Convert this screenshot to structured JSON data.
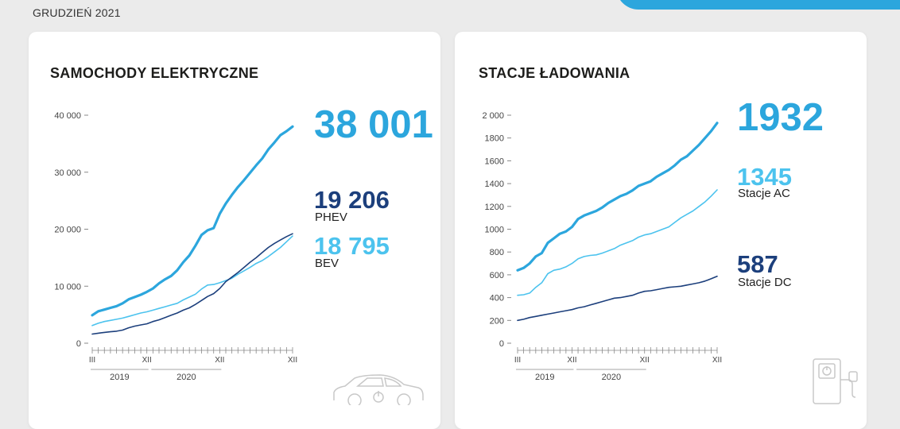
{
  "header": {
    "date": "GRUDZIEŃ 2021"
  },
  "colors": {
    "total": "#2ca6dd",
    "phev": "#1c3f7c",
    "bev": "#4cc3ee",
    "axis": "#888888"
  },
  "icons": [
    "car-icon",
    "charger-icon"
  ],
  "cards": {
    "ev": {
      "title": "SAMOCHODY ELEKTRYCZNE",
      "total_value": "38 001",
      "phev_value": "19 206",
      "phev_label": "PHEV",
      "bev_value": "18 795",
      "bev_label": "BEV"
    },
    "stations": {
      "title": "STACJE ŁADOWANIA",
      "total_value": "1932",
      "ac_value": "1345",
      "ac_label": "Stacje AC",
      "dc_value": "587",
      "dc_label": "Stacje DC"
    }
  },
  "chart_data": [
    {
      "type": "line",
      "title": "SAMOCHODY ELEKTRYCZNE",
      "ylim": [
        0,
        40000
      ],
      "yticks": [
        0,
        10000,
        20000,
        30000,
        40000
      ],
      "ytick_labels": [
        "0",
        "10 000",
        "20 000",
        "30 000",
        "40 000"
      ],
      "xticks": [
        "III",
        "XII",
        "XII",
        "XII"
      ],
      "year_labels": [
        "2019",
        "2020"
      ],
      "grid": false,
      "x_months": [
        "2019-03",
        "2019-04",
        "2019-05",
        "2019-06",
        "2019-07",
        "2019-08",
        "2019-09",
        "2019-10",
        "2019-11",
        "2019-12",
        "2020-01",
        "2020-02",
        "2020-03",
        "2020-04",
        "2020-05",
        "2020-06",
        "2020-07",
        "2020-08",
        "2020-09",
        "2020-10",
        "2020-11",
        "2020-12",
        "2021-01",
        "2021-02",
        "2021-03",
        "2021-04",
        "2021-05",
        "2021-06",
        "2021-07",
        "2021-08",
        "2021-09",
        "2021-10",
        "2021-11",
        "2021-12"
      ],
      "series": [
        {
          "values": [
            4900,
            5600,
            5900,
            6200,
            6500,
            7000,
            7700,
            8100,
            8500,
            9000,
            9600,
            10500,
            11200,
            11800,
            12800,
            14200,
            15400,
            17100,
            19000,
            19800,
            20200,
            22700,
            24500,
            26000,
            27400,
            28600,
            29900,
            31200,
            32400,
            34000,
            35200,
            36500,
            37200,
            38001
          ]
        },
        {
          "values": [
            1600,
            1750,
            1900,
            2000,
            2100,
            2300,
            2700,
            3000,
            3200,
            3400,
            3800,
            4100,
            4500,
            4900,
            5300,
            5800,
            6200,
            6800,
            7500,
            8200,
            8700,
            9600,
            10800,
            11600,
            12400,
            13300,
            14200,
            15000,
            15900,
            16800,
            17500,
            18100,
            18700,
            19206
          ]
        },
        {
          "values": [
            3100,
            3500,
            3800,
            4000,
            4200,
            4400,
            4700,
            5000,
            5300,
            5500,
            5800,
            6100,
            6400,
            6700,
            7000,
            7600,
            8100,
            8600,
            9500,
            10200,
            10300,
            10600,
            11000,
            11400,
            12100,
            12700,
            13300,
            14000,
            14500,
            15200,
            16000,
            16800,
            17800,
            18795
          ]
        }
      ]
    },
    {
      "type": "line",
      "title": "STACJE ŁADOWANIA",
      "ylim": [
        0,
        2000
      ],
      "yticks": [
        0,
        200,
        400,
        600,
        800,
        1000,
        1200,
        1400,
        1600,
        1800,
        2000
      ],
      "ytick_labels": [
        "0",
        "200",
        "400",
        "600",
        "800",
        "1000",
        "1200",
        "1400",
        "1600",
        "1800",
        "2 000"
      ],
      "xticks": [
        "III",
        "XII",
        "XII",
        "XII"
      ],
      "year_labels": [
        "2019",
        "2020"
      ],
      "grid": false,
      "x_months": [
        "2019-03",
        "2019-04",
        "2019-05",
        "2019-06",
        "2019-07",
        "2019-08",
        "2019-09",
        "2019-10",
        "2019-11",
        "2019-12",
        "2020-01",
        "2020-02",
        "2020-03",
        "2020-04",
        "2020-05",
        "2020-06",
        "2020-07",
        "2020-08",
        "2020-09",
        "2020-10",
        "2020-11",
        "2020-12",
        "2021-01",
        "2021-02",
        "2021-03",
        "2021-04",
        "2021-05",
        "2021-06",
        "2021-07",
        "2021-08",
        "2021-09",
        "2021-10",
        "2021-11",
        "2021-12"
      ],
      "series": [
        {
          "values": [
            640,
            660,
            700,
            760,
            790,
            880,
            920,
            960,
            980,
            1020,
            1090,
            1120,
            1140,
            1160,
            1190,
            1230,
            1260,
            1290,
            1310,
            1340,
            1380,
            1400,
            1420,
            1460,
            1490,
            1520,
            1560,
            1610,
            1640,
            1690,
            1740,
            1800,
            1860,
            1932
          ]
        },
        {
          "values": [
            420,
            425,
            440,
            490,
            530,
            610,
            640,
            650,
            670,
            700,
            740,
            760,
            770,
            775,
            790,
            810,
            830,
            860,
            880,
            900,
            930,
            950,
            960,
            980,
            1000,
            1020,
            1060,
            1100,
            1130,
            1160,
            1200,
            1240,
            1290,
            1345
          ]
        },
        {
          "values": [
            200,
            210,
            225,
            235,
            245,
            255,
            265,
            275,
            285,
            295,
            310,
            320,
            335,
            350,
            365,
            380,
            395,
            400,
            410,
            420,
            440,
            455,
            460,
            470,
            480,
            490,
            495,
            500,
            510,
            520,
            530,
            545,
            565,
            587
          ]
        }
      ]
    }
  ]
}
